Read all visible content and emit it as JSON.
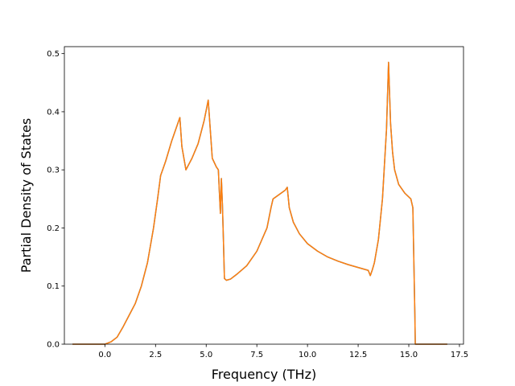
{
  "chart_data": {
    "type": "line",
    "title": "",
    "xlabel": "Frequency (THz)",
    "ylabel": "Partial Density of States",
    "xlim": [
      -2.0,
      17.7
    ],
    "ylim": [
      0.0,
      0.512
    ],
    "xticks": [
      0.0,
      2.5,
      5.0,
      7.5,
      10.0,
      12.5,
      15.0,
      17.5
    ],
    "xtick_labels": [
      "0.0",
      "2.5",
      "5.0",
      "7.5",
      "10.0",
      "12.5",
      "15.0",
      "17.5"
    ],
    "yticks": [
      0.0,
      0.1,
      0.2,
      0.3,
      0.4,
      0.5
    ],
    "ytick_labels": [
      "0.0",
      "0.1",
      "0.2",
      "0.3",
      "0.4",
      "0.5"
    ],
    "grid": false,
    "series": [
      {
        "color": "#1f77b4",
        "x": [
          -1.6,
          0.0,
          0.3,
          0.6,
          0.9,
          1.2,
          1.5,
          1.8,
          2.1,
          2.4,
          2.6,
          2.75,
          2.85,
          3.0,
          3.3,
          3.6,
          3.7,
          3.8,
          4.0,
          4.3,
          4.6,
          4.9,
          5.1,
          5.2,
          5.3,
          5.5,
          5.6,
          5.7,
          5.75,
          5.8,
          5.85,
          5.9,
          6.0,
          6.2,
          6.5,
          7.0,
          7.5,
          8.0,
          8.2,
          8.3,
          8.5,
          8.9,
          9.0,
          9.1,
          9.3,
          9.6,
          10.0,
          10.5,
          11.0,
          11.5,
          12.0,
          12.5,
          12.9,
          13.0,
          13.1,
          13.2,
          13.3,
          13.5,
          13.7,
          13.9,
          14.0,
          14.1,
          14.2,
          14.3,
          14.5,
          14.8,
          15.1,
          15.2,
          15.3,
          15.32,
          16.9
        ],
        "y": [
          0.0,
          0.0,
          0.004,
          0.012,
          0.03,
          0.05,
          0.07,
          0.1,
          0.14,
          0.2,
          0.25,
          0.29,
          0.3,
          0.315,
          0.35,
          0.38,
          0.39,
          0.34,
          0.3,
          0.32,
          0.345,
          0.385,
          0.42,
          0.37,
          0.32,
          0.305,
          0.3,
          0.225,
          0.285,
          0.24,
          0.18,
          0.113,
          0.11,
          0.112,
          0.12,
          0.135,
          0.16,
          0.2,
          0.235,
          0.25,
          0.255,
          0.265,
          0.27,
          0.235,
          0.21,
          0.19,
          0.173,
          0.16,
          0.15,
          0.143,
          0.137,
          0.132,
          0.128,
          0.127,
          0.118,
          0.128,
          0.14,
          0.18,
          0.25,
          0.37,
          0.485,
          0.38,
          0.33,
          0.3,
          0.275,
          0.26,
          0.25,
          0.235,
          0.05,
          0.0,
          0.0
        ]
      },
      {
        "color": "#ff7f0e",
        "x": [
          -1.6,
          0.0,
          0.3,
          0.6,
          0.9,
          1.2,
          1.5,
          1.8,
          2.1,
          2.4,
          2.6,
          2.75,
          2.85,
          3.0,
          3.3,
          3.6,
          3.7,
          3.8,
          4.0,
          4.3,
          4.6,
          4.9,
          5.1,
          5.2,
          5.3,
          5.5,
          5.6,
          5.7,
          5.75,
          5.8,
          5.85,
          5.9,
          6.0,
          6.2,
          6.5,
          7.0,
          7.5,
          8.0,
          8.2,
          8.3,
          8.5,
          8.9,
          9.0,
          9.1,
          9.3,
          9.6,
          10.0,
          10.5,
          11.0,
          11.5,
          12.0,
          12.5,
          12.9,
          13.0,
          13.1,
          13.2,
          13.3,
          13.5,
          13.7,
          13.9,
          14.0,
          14.1,
          14.2,
          14.3,
          14.5,
          14.8,
          15.1,
          15.2,
          15.3,
          15.32,
          16.9
        ],
        "y": [
          0.0,
          0.0,
          0.004,
          0.012,
          0.03,
          0.05,
          0.07,
          0.1,
          0.14,
          0.2,
          0.25,
          0.29,
          0.3,
          0.315,
          0.35,
          0.38,
          0.39,
          0.34,
          0.3,
          0.32,
          0.345,
          0.385,
          0.42,
          0.37,
          0.32,
          0.305,
          0.3,
          0.225,
          0.285,
          0.24,
          0.18,
          0.113,
          0.11,
          0.112,
          0.12,
          0.135,
          0.16,
          0.2,
          0.235,
          0.25,
          0.255,
          0.265,
          0.27,
          0.235,
          0.21,
          0.19,
          0.173,
          0.16,
          0.15,
          0.143,
          0.137,
          0.132,
          0.128,
          0.127,
          0.118,
          0.128,
          0.14,
          0.18,
          0.25,
          0.37,
          0.485,
          0.38,
          0.33,
          0.3,
          0.275,
          0.26,
          0.25,
          0.235,
          0.05,
          0.0,
          0.0
        ]
      }
    ]
  }
}
